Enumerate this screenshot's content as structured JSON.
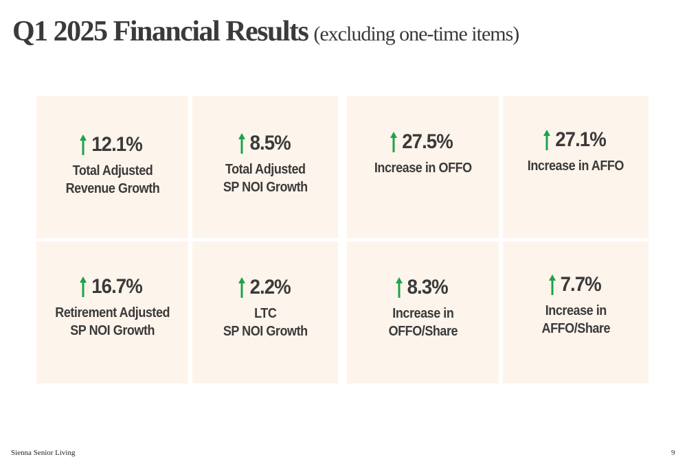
{
  "title": {
    "main": "Q1 2025 Financial Results",
    "sub": "(excluding one-time items)"
  },
  "colors": {
    "tile_background": "#fdf4eb",
    "arrow": "#1aa34a",
    "text": "#3a3a3a"
  },
  "metrics": [
    {
      "value": "12.1%",
      "label": "Total Adjusted\nRevenue Growth",
      "icon": "up-arrow-icon"
    },
    {
      "value": "8.5%",
      "label": "Total Adjusted\nSP NOI Growth",
      "icon": "up-arrow-icon"
    },
    {
      "value": "27.5%",
      "label": "Increase in OFFO",
      "icon": "up-arrow-icon"
    },
    {
      "value": "27.1%",
      "label": "Increase in AFFO",
      "icon": "up-arrow-icon"
    },
    {
      "value": "16.7%",
      "label": "Retirement Adjusted\nSP NOI Growth",
      "icon": "up-arrow-icon"
    },
    {
      "value": "2.2%",
      "label": "LTC\nSP NOI Growth",
      "icon": "up-arrow-icon"
    },
    {
      "value": "8.3%",
      "label": "Increase in\nOFFO/Share",
      "icon": "up-arrow-icon"
    },
    {
      "value": "7.7%",
      "label": "Increase in\nAFFO/Share",
      "icon": "up-arrow-icon"
    }
  ],
  "footer": {
    "company": "Sienna Senior Living",
    "page_number": "9"
  }
}
